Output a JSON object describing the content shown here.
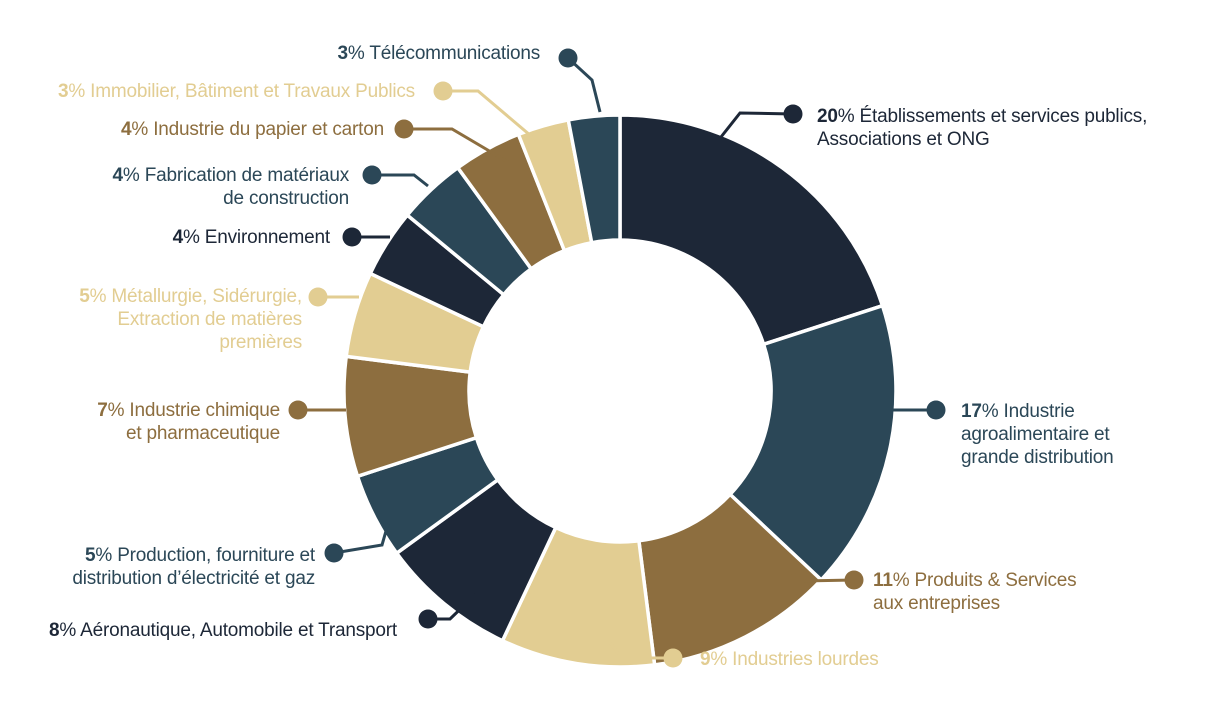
{
  "chart_data": {
    "type": "pie",
    "variant": "donut",
    "direction": "clockwise",
    "start_angle_deg": 0,
    "total": 100,
    "percent_symbol": "%",
    "legend": "none (direct labels with leader lines)",
    "palette": {
      "navy": "#1d2737",
      "teal": "#2b4757",
      "brown": "#8d6e3f",
      "tan": "#e2cd92"
    },
    "segments": [
      {
        "key": "etablissements-publics",
        "pct": "20",
        "value": 20,
        "color": "navy",
        "lines": [
          "Établissements et services publics,",
          "Associations et ONG"
        ]
      },
      {
        "key": "agroalimentaire",
        "pct": "17",
        "value": 17,
        "color": "teal",
        "lines": [
          "Industrie",
          "agroalimentaire et",
          "grande distribution"
        ]
      },
      {
        "key": "produits-services",
        "pct": "11",
        "value": 11,
        "color": "brown",
        "lines": [
          "Produits & Services",
          "aux entreprises"
        ]
      },
      {
        "key": "industries-lourdes",
        "pct": "9",
        "value": 9,
        "color": "tan",
        "lines": [
          "Industries lourdes"
        ]
      },
      {
        "key": "aeronautique-transport",
        "pct": "8",
        "value": 8,
        "color": "navy",
        "lines": [
          "Aéronautique, Automobile et Transport"
        ]
      },
      {
        "key": "electricite-gaz",
        "pct": "5",
        "value": 5,
        "color": "teal",
        "lines": [
          "Production, fourniture et",
          "distribution d’électricité et gaz"
        ]
      },
      {
        "key": "chimie-pharma",
        "pct": "7",
        "value": 7,
        "color": "brown",
        "lines": [
          "Industrie chimique",
          "et pharmaceutique"
        ]
      },
      {
        "key": "metallurgie",
        "pct": "5",
        "value": 5,
        "color": "tan",
        "lines": [
          "Métallurgie, Sidérurgie,",
          "Extraction de matières",
          "premières"
        ]
      },
      {
        "key": "environnement",
        "pct": "4",
        "value": 4,
        "color": "navy",
        "lines": [
          "Environnement"
        ]
      },
      {
        "key": "materiaux-construction",
        "pct": "4",
        "value": 4,
        "color": "teal",
        "lines": [
          "Fabrication de matériaux",
          "de construction"
        ]
      },
      {
        "key": "papier-carton",
        "pct": "4",
        "value": 4,
        "color": "brown",
        "lines": [
          "Industrie du papier et carton"
        ]
      },
      {
        "key": "immobilier-btp",
        "pct": "3",
        "value": 3,
        "color": "tan",
        "lines": [
          "Immobilier, Bâtiment et Travaux Publics"
        ]
      },
      {
        "key": "telecommunications",
        "pct": "3",
        "value": 3,
        "color": "teal",
        "lines": [
          "Télécommunications"
        ]
      }
    ]
  }
}
